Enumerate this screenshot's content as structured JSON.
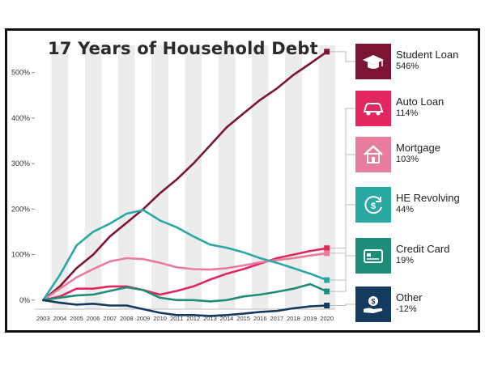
{
  "chart_data": {
    "type": "line",
    "title": "17 Years of Household Debt",
    "xlabel": "",
    "ylabel": "",
    "x": [
      "2003",
      "2004",
      "2005",
      "2006",
      "2007",
      "2008",
      "2009",
      "2010",
      "2011",
      "2012",
      "2013",
      "2014",
      "2015",
      "2016",
      "2017",
      "2018",
      "2019",
      "2020"
    ],
    "y_ticks": [
      "0%",
      "100%",
      "200%",
      "300%",
      "400%",
      "500%"
    ],
    "ylim": [
      -20,
      560
    ],
    "grid": "alternating vertical bands",
    "legend_position": "right",
    "series": [
      {
        "name": "Student Loan",
        "label": "546%",
        "color": "#7b1533",
        "values": [
          0,
          30,
          70,
          100,
          140,
          170,
          200,
          235,
          265,
          300,
          340,
          380,
          410,
          440,
          465,
          495,
          520,
          546
        ]
      },
      {
        "name": "Auto Loan",
        "label": "114%",
        "color": "#e2275f",
        "values": [
          0,
          8,
          25,
          25,
          30,
          30,
          22,
          12,
          20,
          30,
          45,
          58,
          68,
          80,
          92,
          100,
          108,
          114
        ]
      },
      {
        "name": "Mortgage",
        "label": "103%",
        "color": "#e87c9d",
        "values": [
          0,
          25,
          50,
          68,
          85,
          92,
          90,
          82,
          72,
          68,
          67,
          70,
          76,
          83,
          88,
          92,
          98,
          103
        ]
      },
      {
        "name": "HE Revolving",
        "label": "44%",
        "color": "#2aa8a3",
        "values": [
          0,
          55,
          120,
          150,
          168,
          190,
          198,
          175,
          160,
          140,
          122,
          115,
          105,
          92,
          82,
          70,
          58,
          44
        ]
      },
      {
        "name": "Credit Card",
        "label": "19%",
        "color": "#1f8c7a",
        "values": [
          0,
          5,
          10,
          12,
          20,
          28,
          22,
          5,
          0,
          0,
          -3,
          0,
          8,
          12,
          18,
          25,
          35,
          19
        ]
      },
      {
        "name": "Other",
        "label": "-12%",
        "color": "#143a5e",
        "values": [
          0,
          -6,
          -10,
          -8,
          -12,
          -12,
          -20,
          -28,
          -33,
          -33,
          -35,
          -33,
          -30,
          -26,
          -24,
          -18,
          -14,
          -12
        ]
      }
    ]
  },
  "icons": [
    "graduation-cap-icon",
    "car-icon",
    "house-icon",
    "refresh-dollar-icon",
    "credit-card-icon",
    "money-hand-icon"
  ]
}
